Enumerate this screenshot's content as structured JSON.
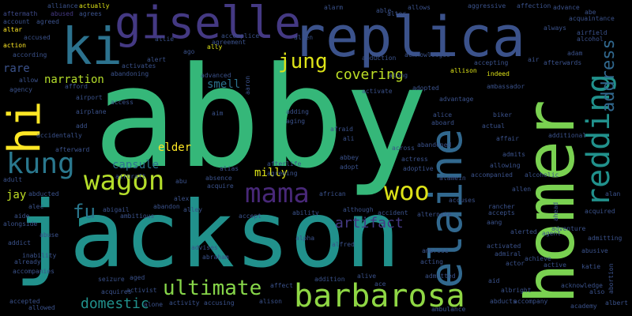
{
  "words": [
    {
      "text": "abby",
      "color": "#35b779"
    },
    {
      "text": "jackson",
      "color": "#2a788e"
    },
    {
      "text": "homer",
      "color": "#7ad151"
    },
    {
      "text": "replica",
      "color": "#3b528b"
    },
    {
      "text": "giselle",
      "color": "#443983"
    },
    {
      "text": "elaine",
      "color": "#31688e"
    },
    {
      "text": "ki",
      "color": "#2c728e"
    },
    {
      "text": "barbarosa",
      "color": "#8fd744"
    },
    {
      "text": "hi",
      "color": "#fde725"
    },
    {
      "text": "redding",
      "color": "#21918c"
    },
    {
      "text": "mama",
      "color": "#482878"
    },
    {
      "text": "wagon",
      "color": "#b5de2b"
    },
    {
      "text": "kung",
      "color": "#2a788e"
    },
    {
      "text": "woo",
      "color": "#dde318"
    },
    {
      "text": "ultimate",
      "color": "#86d549"
    },
    {
      "text": "jung",
      "color": "#dde318"
    },
    {
      "text": "address",
      "color": "#31688e"
    },
    {
      "text": "covering",
      "color": "#bddf26"
    },
    {
      "text": "fu",
      "color": "#2a788e"
    },
    {
      "text": "artifact",
      "color": "#443983"
    },
    {
      "text": "domestic",
      "color": "#21918c"
    },
    {
      "text": "narration",
      "color": "#b5de2b"
    },
    {
      "text": "capsule",
      "color": "#2c728e"
    },
    {
      "text": "milly",
      "color": "#dde318"
    },
    {
      "text": "smell",
      "color": "#2c728e"
    },
    {
      "text": "jay",
      "color": "#c0df25"
    },
    {
      "text": "rare",
      "color": "#3b528b"
    },
    {
      "text": "elder",
      "color": "#fde725"
    },
    {
      "text": "aftermath",
      "color": "#3e4a89"
    },
    {
      "text": "alliance",
      "color": "#3b528b"
    },
    {
      "text": "abused",
      "color": "#443983"
    },
    {
      "text": "actually",
      "color": "#dde318"
    },
    {
      "text": "alarm",
      "color": "#3b528b"
    },
    {
      "text": "able",
      "color": "#3b528b"
    },
    {
      "text": "alter",
      "color": "#3b528b"
    },
    {
      "text": "allows",
      "color": "#3b528b"
    },
    {
      "text": "aggressive",
      "color": "#3b528b"
    },
    {
      "text": "affection",
      "color": "#3b528b"
    },
    {
      "text": "advance",
      "color": "#3b528b"
    },
    {
      "text": "abe",
      "color": "#3b528b"
    },
    {
      "text": "acquaintance",
      "color": "#3b528b"
    },
    {
      "text": "always",
      "color": "#3b528b"
    },
    {
      "text": "airfield",
      "color": "#3b528b"
    },
    {
      "text": "alcohol",
      "color": "#3b528b"
    },
    {
      "text": "account",
      "color": "#3b528b"
    },
    {
      "text": "agreed",
      "color": "#3b528b"
    },
    {
      "text": "agrees",
      "color": "#3b528b"
    },
    {
      "text": "altar",
      "color": "#fde725"
    },
    {
      "text": "accused",
      "color": "#3b528b"
    },
    {
      "text": "action",
      "color": "#fde725"
    },
    {
      "text": "according",
      "color": "#3b528b"
    },
    {
      "text": "allie",
      "color": "#3b528b"
    },
    {
      "text": "ally",
      "color": "#dde318"
    },
    {
      "text": "accomplice",
      "color": "#3b528b"
    },
    {
      "text": "agreement",
      "color": "#3b528b"
    },
    {
      "text": "ago",
      "color": "#3b528b"
    },
    {
      "text": "alert",
      "color": "#3b528b"
    },
    {
      "text": "activates",
      "color": "#3b528b"
    },
    {
      "text": "abandoning",
      "color": "#3b528b"
    },
    {
      "text": "alien",
      "color": "#3b528b"
    },
    {
      "text": "abduction",
      "color": "#3b528b"
    },
    {
      "text": "acknowledges",
      "color": "#3b528b"
    },
    {
      "text": "allison",
      "color": "#dde318"
    },
    {
      "text": "accepting",
      "color": "#3b528b"
    },
    {
      "text": "adam",
      "color": "#3b528b"
    },
    {
      "text": "air",
      "color": "#3b528b"
    },
    {
      "text": "afterwards",
      "color": "#3b528b"
    },
    {
      "text": "allow",
      "color": "#3b528b"
    },
    {
      "text": "agency",
      "color": "#3b528b"
    },
    {
      "text": "afford",
      "color": "#3b528b"
    },
    {
      "text": "airport",
      "color": "#3b528b"
    },
    {
      "text": "airplane",
      "color": "#3b528b"
    },
    {
      "text": "advanced",
      "color": "#3b528b"
    },
    {
      "text": "access",
      "color": "#3b528b"
    },
    {
      "text": "aaron",
      "color": "#3b528b"
    },
    {
      "text": "activate",
      "color": "#3b528b"
    },
    {
      "text": "along",
      "color": "#3b528b"
    },
    {
      "text": "adopted",
      "color": "#3b528b"
    },
    {
      "text": "indeed",
      "color": "#dde318"
    },
    {
      "text": "advantage",
      "color": "#3b528b"
    },
    {
      "text": "ambassador",
      "color": "#3b528b"
    },
    {
      "text": "biker",
      "color": "#3b528b"
    },
    {
      "text": "affair",
      "color": "#3b528b"
    },
    {
      "text": "actual",
      "color": "#3b528b"
    },
    {
      "text": "additional",
      "color": "#3b528b"
    },
    {
      "text": "alice",
      "color": "#3b528b"
    },
    {
      "text": "aboard",
      "color": "#3b528b"
    },
    {
      "text": "abandoned",
      "color": "#3b528b"
    },
    {
      "text": "accidentally",
      "color": "#3b528b"
    },
    {
      "text": "afterward",
      "color": "#3b528b"
    },
    {
      "text": "add",
      "color": "#3b528b"
    },
    {
      "text": "aim",
      "color": "#3b528b"
    },
    {
      "text": "adding",
      "color": "#3b528b"
    },
    {
      "text": "aging",
      "color": "#3b528b"
    },
    {
      "text": "afraid",
      "color": "#3b528b"
    },
    {
      "text": "ali",
      "color": "#3b528b"
    },
    {
      "text": "across",
      "color": "#3b528b"
    },
    {
      "text": "actress",
      "color": "#3b528b"
    },
    {
      "text": "adoptive",
      "color": "#3b528b"
    },
    {
      "text": "abbey",
      "color": "#3b528b"
    },
    {
      "text": "adopt",
      "color": "#3b528b"
    },
    {
      "text": "alamein",
      "color": "#3b528b"
    },
    {
      "text": "afterlife",
      "color": "#3b528b"
    },
    {
      "text": "agreeing",
      "color": "#3b528b"
    },
    {
      "text": "alias",
      "color": "#3b528b"
    },
    {
      "text": "allowing",
      "color": "#3b528b"
    },
    {
      "text": "admits",
      "color": "#3b528b"
    },
    {
      "text": "accompanied",
      "color": "#3b528b"
    },
    {
      "text": "alcoholic",
      "color": "#3b528b"
    },
    {
      "text": "allen",
      "color": "#3b528b"
    },
    {
      "text": "alan",
      "color": "#3b528b"
    },
    {
      "text": "aircraft",
      "color": "#3b528b"
    },
    {
      "text": "abu",
      "color": "#3b528b"
    },
    {
      "text": "absence",
      "color": "#3b528b"
    },
    {
      "text": "acquire",
      "color": "#3b528b"
    },
    {
      "text": "alex",
      "color": "#3b528b"
    },
    {
      "text": "abigail",
      "color": "#3b528b"
    },
    {
      "text": "abandon",
      "color": "#3b528b"
    },
    {
      "text": "alley",
      "color": "#3b528b"
    },
    {
      "text": "ambitious",
      "color": "#3b528b"
    },
    {
      "text": "african",
      "color": "#3b528b"
    },
    {
      "text": "accuses",
      "color": "#3b528b"
    },
    {
      "text": "rancher",
      "color": "#3b528b"
    },
    {
      "text": "accepts",
      "color": "#3b528b"
    },
    {
      "text": "ahead",
      "color": "#3b528b"
    },
    {
      "text": "acquired",
      "color": "#3b528b"
    },
    {
      "text": "adult",
      "color": "#3b528b"
    },
    {
      "text": "abducted",
      "color": "#3b528b"
    },
    {
      "text": "alec",
      "color": "#3b528b"
    },
    {
      "text": "aide",
      "color": "#3b528b"
    },
    {
      "text": "alongside",
      "color": "#3b528b"
    },
    {
      "text": "abuse",
      "color": "#3b528b"
    },
    {
      "text": "addict",
      "color": "#3b528b"
    },
    {
      "text": "inability",
      "color": "#3b528b"
    },
    {
      "text": "already",
      "color": "#3b528b"
    },
    {
      "text": "accompanies",
      "color": "#3b528b"
    },
    {
      "text": "accepted",
      "color": "#3b528b"
    },
    {
      "text": "allowed",
      "color": "#3b528b"
    },
    {
      "text": "accept",
      "color": "#3b528b"
    },
    {
      "text": "ability",
      "color": "#3b528b"
    },
    {
      "text": "although",
      "color": "#3b528b"
    },
    {
      "text": "accident",
      "color": "#3b528b"
    },
    {
      "text": "alternate",
      "color": "#3b528b"
    },
    {
      "text": "alpha",
      "color": "#3b528b"
    },
    {
      "text": "alfred",
      "color": "#3b528b"
    },
    {
      "text": "ambrose",
      "color": "#3b528b"
    },
    {
      "text": "acting",
      "color": "#3b528b"
    },
    {
      "text": "aang",
      "color": "#3b528b"
    },
    {
      "text": "alerted",
      "color": "#3b528b"
    },
    {
      "text": "agent",
      "color": "#3b528b"
    },
    {
      "text": "adventure",
      "color": "#3b528b"
    },
    {
      "text": "admitting",
      "color": "#3b528b"
    },
    {
      "text": "activated",
      "color": "#3b528b"
    },
    {
      "text": "abusive",
      "color": "#3b528b"
    },
    {
      "text": "admiral",
      "color": "#3b528b"
    },
    {
      "text": "achieve",
      "color": "#3b528b"
    },
    {
      "text": "actor",
      "color": "#3b528b"
    },
    {
      "text": "active",
      "color": "#3b528b"
    },
    {
      "text": "katie",
      "color": "#3b528b"
    },
    {
      "text": "advises",
      "color": "#3b528b"
    },
    {
      "text": "abraham",
      "color": "#3b528b"
    },
    {
      "text": "seizure",
      "color": "#3b528b"
    },
    {
      "text": "aged",
      "color": "#3b528b"
    },
    {
      "text": "affect",
      "color": "#3b528b"
    },
    {
      "text": "addition",
      "color": "#3b528b"
    },
    {
      "text": "alive",
      "color": "#3b528b"
    },
    {
      "text": "ace",
      "color": "#3b528b"
    },
    {
      "text": "admitted",
      "color": "#3b528b"
    },
    {
      "text": "aid",
      "color": "#3b528b"
    },
    {
      "text": "albright",
      "color": "#3b528b"
    },
    {
      "text": "acknowledge",
      "color": "#3b528b"
    },
    {
      "text": "also",
      "color": "#3b528b"
    },
    {
      "text": "abortion",
      "color": "#3b528b"
    },
    {
      "text": "acquires",
      "color": "#3b528b"
    },
    {
      "text": "activist",
      "color": "#3b528b"
    },
    {
      "text": "alone",
      "color": "#3b528b"
    },
    {
      "text": "activity",
      "color": "#3b528b"
    },
    {
      "text": "accusing",
      "color": "#3b528b"
    },
    {
      "text": "alison",
      "color": "#3b528b"
    },
    {
      "text": "ambulance",
      "color": "#3b528b"
    },
    {
      "text": "abducts",
      "color": "#3b528b"
    },
    {
      "text": "accompany",
      "color": "#3b528b"
    },
    {
      "text": "academy",
      "color": "#3b528b"
    },
    {
      "text": "albert",
      "color": "#3b528b"
    }
  ]
}
